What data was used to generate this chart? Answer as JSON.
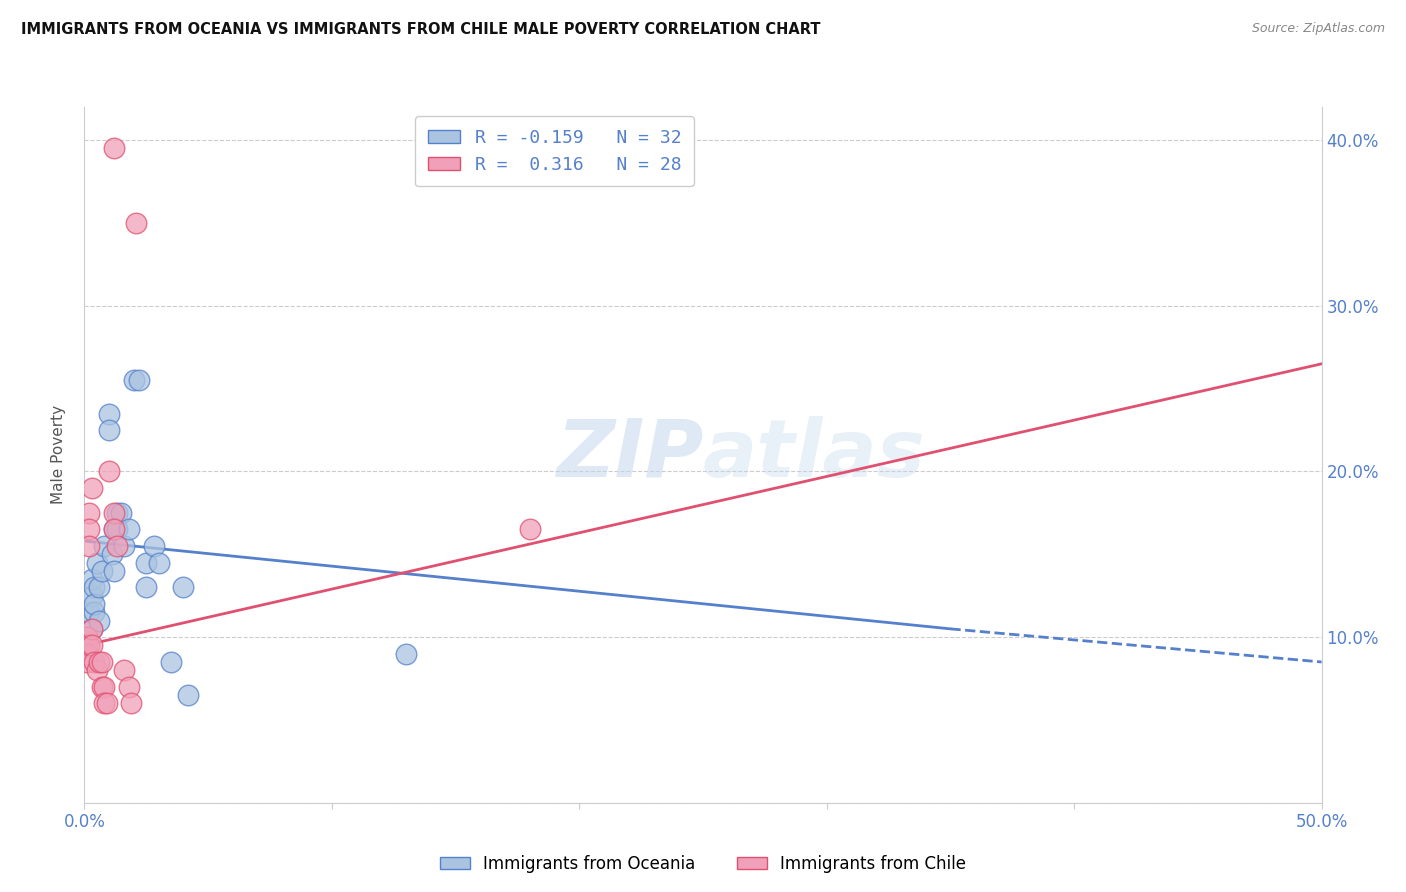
{
  "title": "IMMIGRANTS FROM OCEANIA VS IMMIGRANTS FROM CHILE MALE POVERTY CORRELATION CHART",
  "source": "Source: ZipAtlas.com",
  "ylabel": "Male Poverty",
  "x_min": 0.0,
  "x_max": 50.0,
  "y_min": 0.0,
  "y_max": 42.0,
  "x_ticks": [
    0.0,
    10.0,
    20.0,
    30.0,
    40.0,
    50.0
  ],
  "x_tick_labels": [
    "0.0%",
    "",
    "",
    "",
    "",
    "50.0%"
  ],
  "y_ticks": [
    0.0,
    10.0,
    20.0,
    30.0,
    40.0
  ],
  "y_tick_labels": [
    "",
    "10.0%",
    "20.0%",
    "30.0%",
    "40.0%"
  ],
  "legend_r1": "R = -0.159",
  "legend_n1": "N = 32",
  "legend_r2": "R =  0.316",
  "legend_n2": "N = 28",
  "color_oceania": "#aac4e0",
  "color_chile": "#f0a0b8",
  "color_line_oceania": "#5580cc",
  "color_line_chile": "#e05070",
  "watermark_color": "#c5d8ee",
  "oceania_points": [
    [
      0.2,
      11.5
    ],
    [
      0.3,
      12.5
    ],
    [
      0.3,
      13.5
    ],
    [
      0.3,
      10.5
    ],
    [
      0.4,
      13.0
    ],
    [
      0.4,
      11.5
    ],
    [
      0.4,
      12.0
    ],
    [
      0.5,
      14.5
    ],
    [
      0.6,
      11.0
    ],
    [
      0.6,
      13.0
    ],
    [
      0.7,
      14.0
    ],
    [
      0.8,
      15.5
    ],
    [
      1.0,
      23.5
    ],
    [
      1.0,
      22.5
    ],
    [
      1.1,
      15.0
    ],
    [
      1.2,
      16.5
    ],
    [
      1.2,
      14.0
    ],
    [
      1.3,
      17.5
    ],
    [
      1.3,
      16.5
    ],
    [
      1.5,
      17.5
    ],
    [
      1.6,
      15.5
    ],
    [
      1.8,
      16.5
    ],
    [
      2.0,
      25.5
    ],
    [
      2.2,
      25.5
    ],
    [
      2.5,
      14.5
    ],
    [
      2.5,
      13.0
    ],
    [
      2.8,
      15.5
    ],
    [
      3.0,
      14.5
    ],
    [
      3.5,
      8.5
    ],
    [
      4.0,
      13.0
    ],
    [
      4.2,
      6.5
    ],
    [
      13.0,
      9.0
    ]
  ],
  "chile_points": [
    [
      0.1,
      10.0
    ],
    [
      0.1,
      9.5
    ],
    [
      0.1,
      9.0
    ],
    [
      0.1,
      8.5
    ],
    [
      0.2,
      17.5
    ],
    [
      0.2,
      16.5
    ],
    [
      0.2,
      15.5
    ],
    [
      0.2,
      9.5
    ],
    [
      0.3,
      19.0
    ],
    [
      0.3,
      10.5
    ],
    [
      0.3,
      9.5
    ],
    [
      0.4,
      8.5
    ],
    [
      0.5,
      8.0
    ],
    [
      0.6,
      8.5
    ],
    [
      0.7,
      8.5
    ],
    [
      0.7,
      7.0
    ],
    [
      0.8,
      7.0
    ],
    [
      0.8,
      6.0
    ],
    [
      0.9,
      6.0
    ],
    [
      1.0,
      20.0
    ],
    [
      1.2,
      17.5
    ],
    [
      1.2,
      16.5
    ],
    [
      1.3,
      15.5
    ],
    [
      1.6,
      8.0
    ],
    [
      1.8,
      7.0
    ],
    [
      1.9,
      6.0
    ],
    [
      2.1,
      35.0
    ],
    [
      18.0,
      16.5
    ],
    [
      1.2,
      39.5
    ]
  ],
  "oceania_line_solid": {
    "x0": 0.0,
    "y0": 15.8,
    "x1": 35.0,
    "y1": 10.5
  },
  "oceania_line_dash": {
    "x0": 35.0,
    "y0": 10.5,
    "x1": 50.0,
    "y1": 8.5
  },
  "chile_line": {
    "x0": 0.0,
    "y0": 9.5,
    "x1": 50.0,
    "y1": 26.5
  },
  "grid_color": "#cccccc",
  "background_color": "#ffffff"
}
